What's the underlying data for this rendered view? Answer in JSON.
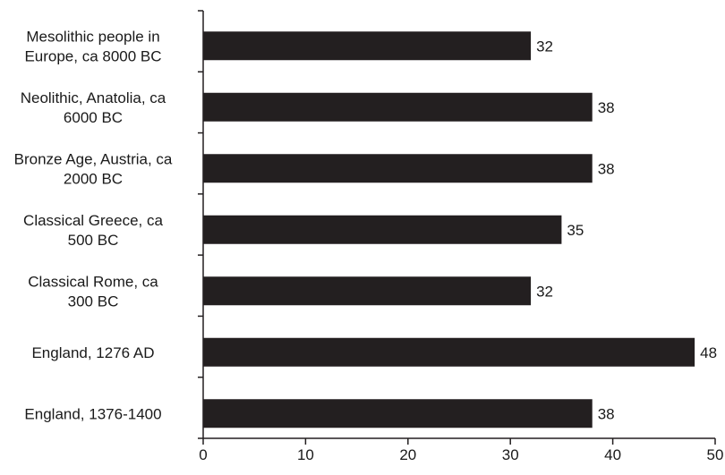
{
  "chart_data": {
    "type": "bar",
    "orientation": "horizontal",
    "title": "",
    "xlabel": "",
    "ylabel": "",
    "categories": [
      [
        "Mesolithic people in",
        "Europe, ca 8000 BC"
      ],
      [
        "Neolithic, Anatolia, ca",
        "6000 BC"
      ],
      [
        "Bronze Age, Austria, ca",
        "2000 BC"
      ],
      [
        "Classical Greece, ca",
        "500 BC"
      ],
      [
        "Classical Rome, ca",
        "300 BC"
      ],
      [
        "England, 1276 AD"
      ],
      [
        "England, 1376-1400"
      ]
    ],
    "values": [
      32,
      38,
      38,
      35,
      32,
      48,
      38
    ],
    "data_labels": [
      "32",
      "38",
      "38",
      "35",
      "32",
      "48",
      "38"
    ],
    "xlim": [
      0,
      50
    ],
    "xticks": [
      0,
      10,
      20,
      30,
      40,
      50
    ],
    "grid": false,
    "legend": "none",
    "bar_color": "#231f20"
  }
}
